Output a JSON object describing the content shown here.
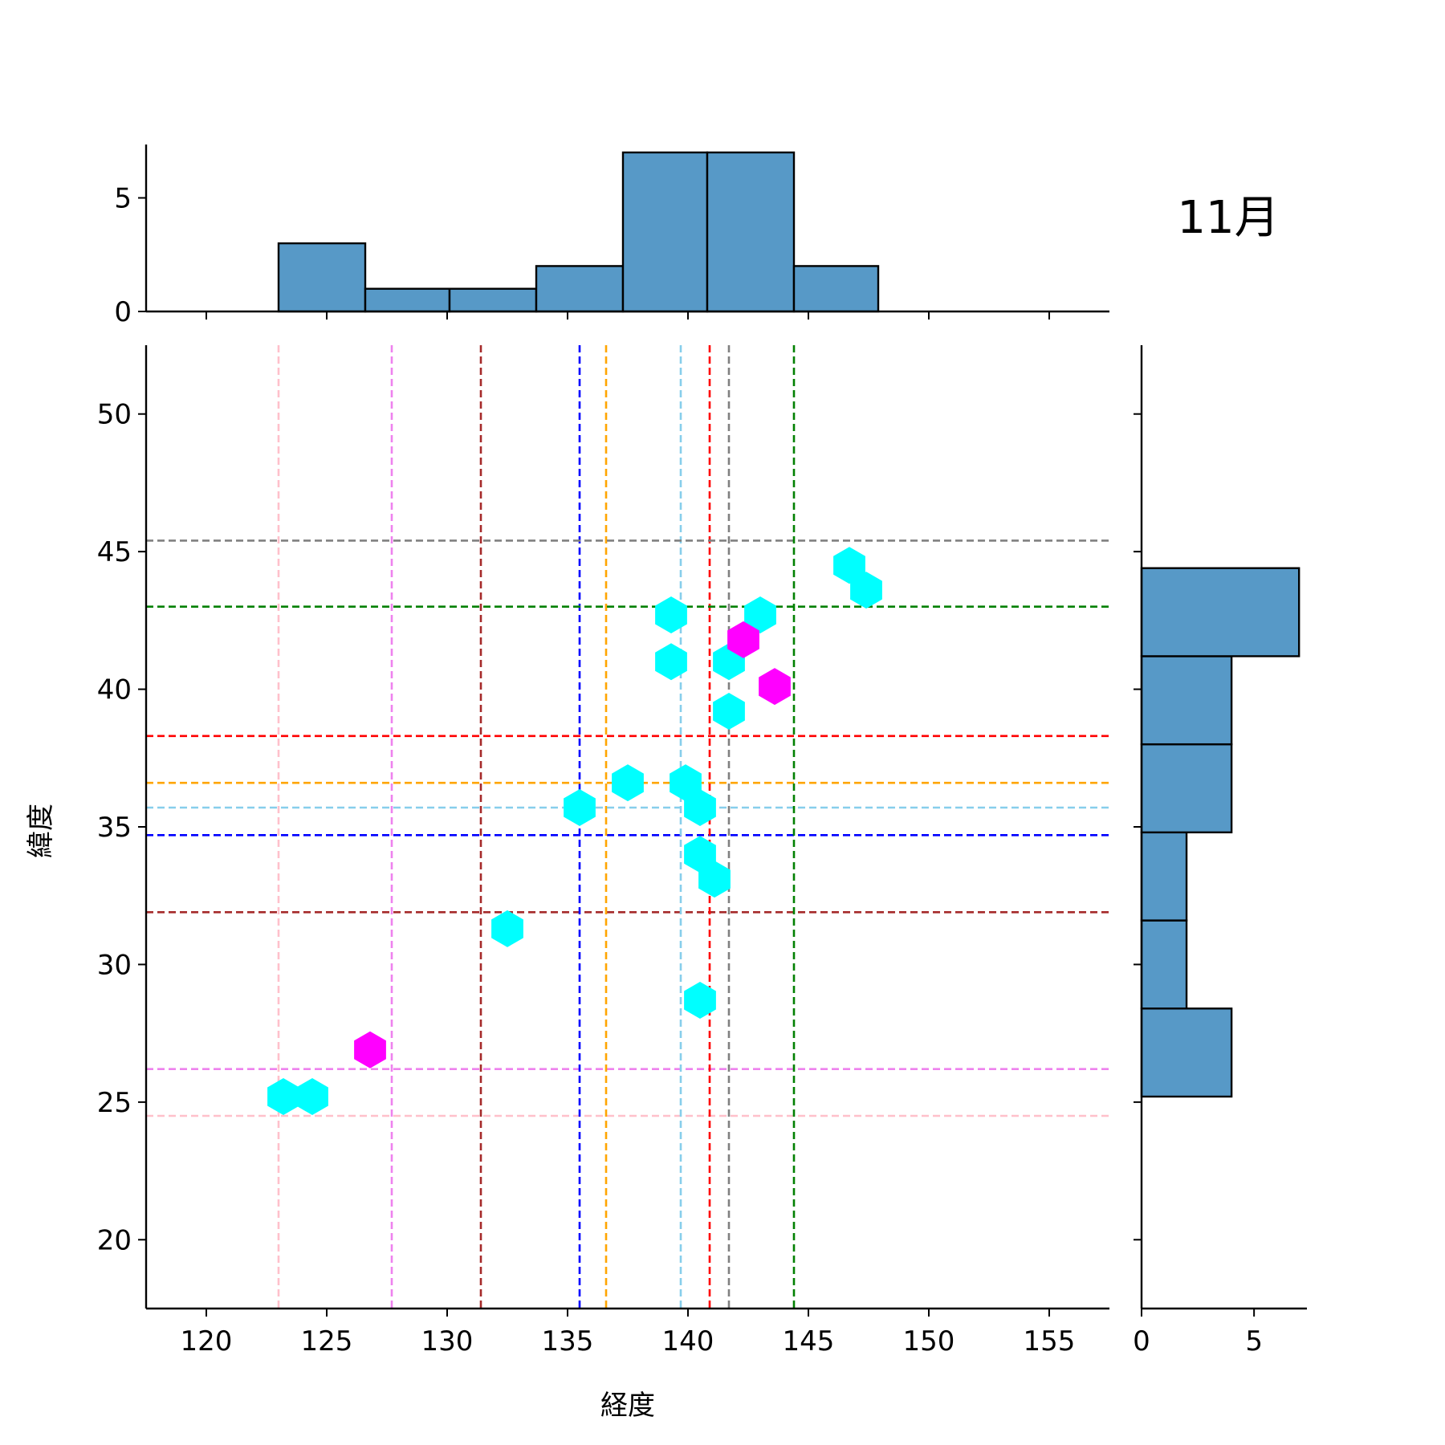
{
  "chart_data": {
    "type": "hexbin-jointplot",
    "title": "11月",
    "xlabel": "経度",
    "ylabel": "緯度",
    "xlim": [
      117.5,
      157.5
    ],
    "ylim": [
      17.5,
      52.5
    ],
    "xticks": [
      120,
      125,
      130,
      135,
      140,
      145,
      150,
      155
    ],
    "yticks": [
      20,
      25,
      30,
      35,
      40,
      45,
      50
    ],
    "hex_points": [
      {
        "x": 123.2,
        "y": 25.2,
        "count": 1
      },
      {
        "x": 124.4,
        "y": 25.2,
        "count": 1
      },
      {
        "x": 126.8,
        "y": 26.9,
        "count": 2
      },
      {
        "x": 132.5,
        "y": 31.3,
        "count": 1
      },
      {
        "x": 135.5,
        "y": 35.7,
        "count": 1
      },
      {
        "x": 137.5,
        "y": 36.6,
        "count": 1
      },
      {
        "x": 139.9,
        "y": 36.6,
        "count": 1
      },
      {
        "x": 140.5,
        "y": 35.7,
        "count": 1
      },
      {
        "x": 140.5,
        "y": 34.0,
        "count": 1
      },
      {
        "x": 141.1,
        "y": 33.1,
        "count": 1
      },
      {
        "x": 140.5,
        "y": 28.7,
        "count": 1
      },
      {
        "x": 139.3,
        "y": 42.7,
        "count": 1
      },
      {
        "x": 139.3,
        "y": 41.0,
        "count": 1
      },
      {
        "x": 141.7,
        "y": 41.0,
        "count": 1
      },
      {
        "x": 141.7,
        "y": 39.2,
        "count": 1
      },
      {
        "x": 143.0,
        "y": 42.7,
        "count": 1
      },
      {
        "x": 142.3,
        "y": 41.8,
        "count": 2
      },
      {
        "x": 143.6,
        "y": 40.1,
        "count": 2
      },
      {
        "x": 146.7,
        "y": 44.5,
        "count": 1
      },
      {
        "x": 147.4,
        "y": 43.6,
        "count": 1
      }
    ],
    "hex_colors": {
      "1": "#00ffff",
      "2": "#ff00ff"
    },
    "reference_lines": [
      {
        "color": "#ffc0cb",
        "x": 123.0,
        "y": 24.5
      },
      {
        "color": "#ee82ee",
        "x": 127.7,
        "y": 26.2
      },
      {
        "color": "#a52a2a",
        "x": 131.4,
        "y": 31.9
      },
      {
        "color": "#0000ff",
        "x": 135.5,
        "y": 34.7
      },
      {
        "color": "#ffa500",
        "x": 136.6,
        "y": 36.6
      },
      {
        "color": "#87ceeb",
        "x": 139.7,
        "y": 35.7
      },
      {
        "color": "#ff0000",
        "x": 140.9,
        "y": 38.3
      },
      {
        "color": "#808080",
        "x": 141.7,
        "y": 45.4
      },
      {
        "color": "#008000",
        "x": 144.4,
        "y": 43.0
      }
    ],
    "top_histogram": {
      "bins": [
        [
          123.0,
          126.6
        ],
        [
          126.6,
          130.1
        ],
        [
          130.1,
          133.7
        ],
        [
          133.7,
          137.3
        ],
        [
          137.3,
          140.8
        ],
        [
          140.8,
          144.4
        ],
        [
          144.4,
          147.9
        ]
      ],
      "counts": [
        3,
        1,
        1,
        2,
        7,
        7,
        2
      ],
      "ylim": [
        0,
        7.35
      ],
      "yticks": [
        0,
        5
      ],
      "xticks": [
        120,
        125,
        130,
        135,
        140,
        145,
        150,
        155
      ]
    },
    "right_histogram": {
      "bins": [
        [
          25.2,
          28.4
        ],
        [
          28.4,
          31.6
        ],
        [
          31.6,
          34.8
        ],
        [
          34.8,
          38.0
        ],
        [
          38.0,
          41.2
        ],
        [
          41.2,
          44.4
        ]
      ],
      "counts": [
        4,
        2,
        2,
        4,
        4,
        7
      ],
      "xlim": [
        0,
        7.35
      ],
      "xticks": [
        0,
        5
      ],
      "yticks": [
        20,
        25,
        30,
        35,
        40,
        45,
        50
      ]
    },
    "bar_color": "#5799c7",
    "legend": null,
    "grid": false
  }
}
